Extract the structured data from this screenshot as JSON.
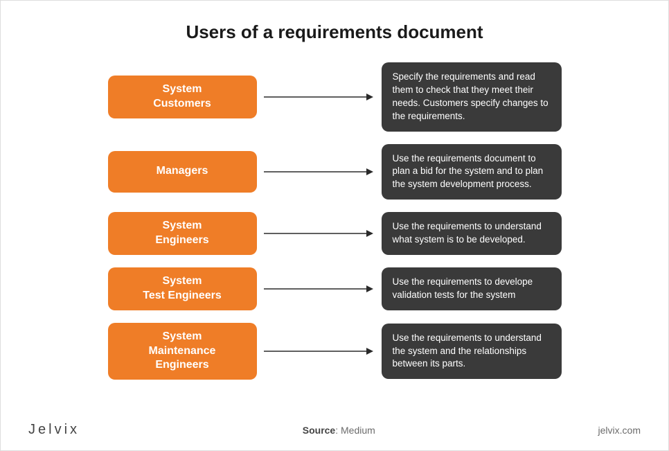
{
  "title": "Users of a requirements document",
  "styling": {
    "user_box_bg": "#ef7d27",
    "user_box_fg": "#ffffff",
    "desc_box_bg": "#3a3a3a",
    "desc_box_fg": "#ffffff",
    "arrow_color": "#2a2a2a",
    "background": "#ffffff",
    "title_color": "#1a1a1a",
    "border_radius": 10,
    "user_box_width": 215,
    "desc_box_width": 260,
    "arrow_width": 160,
    "title_fontsize": 26,
    "user_fontsize": 16,
    "desc_fontsize": 13.5
  },
  "rows": [
    {
      "user": "System\nCustomers",
      "desc": "Specify the requirements and read them to check that they meet their needs. Customers specify changes to the requirements."
    },
    {
      "user": "Managers",
      "desc": "Use the requirements document to plan a bid for the system and to plan the system development process."
    },
    {
      "user": "System\nEngineers",
      "desc": "Use the requirements to understand what system is to be developed."
    },
    {
      "user": "System\nTest Engineers",
      "desc": "Use the requirements to develope validation tests for the system"
    },
    {
      "user": "System\nMaintenance\nEngineers",
      "desc": "Use the requirements to understand the system and the relationships between its parts."
    }
  ],
  "footer": {
    "brand": "Jelvix",
    "source_label": "Source",
    "source_value": "Medium",
    "site": "jelvix.com"
  }
}
